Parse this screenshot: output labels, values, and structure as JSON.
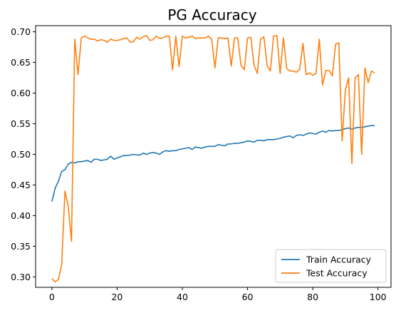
{
  "chart_data": {
    "type": "line",
    "title": "PG Accuracy",
    "xlabel": "",
    "ylabel": "",
    "xlim": [
      -5,
      104
    ],
    "ylim": [
      0.283,
      0.71
    ],
    "x_ticks": [
      0,
      20,
      40,
      60,
      80,
      100
    ],
    "y_ticks": [
      0.3,
      0.35,
      0.4,
      0.45,
      0.5,
      0.55,
      0.6,
      0.65,
      0.7
    ],
    "y_tick_labels": [
      "0.30",
      "0.35",
      "0.40",
      "0.45",
      "0.50",
      "0.55",
      "0.60",
      "0.65",
      "0.70"
    ],
    "grid": false,
    "legend_position": "lower-right",
    "series": [
      {
        "name": "Train Accuracy",
        "color": "#1f77b4",
        "values": [
          0.423,
          0.445,
          0.456,
          0.472,
          0.475,
          0.484,
          0.487,
          0.486,
          0.488,
          0.488,
          0.489,
          0.49,
          0.487,
          0.492,
          0.492,
          0.49,
          0.491,
          0.492,
          0.497,
          0.492,
          0.494,
          0.496,
          0.498,
          0.498,
          0.499,
          0.5,
          0.499,
          0.499,
          0.502,
          0.5,
          0.502,
          0.503,
          0.502,
          0.5,
          0.504,
          0.506,
          0.505,
          0.506,
          0.506,
          0.508,
          0.509,
          0.51,
          0.511,
          0.508,
          0.512,
          0.511,
          0.51,
          0.512,
          0.513,
          0.513,
          0.513,
          0.516,
          0.515,
          0.514,
          0.517,
          0.517,
          0.518,
          0.518,
          0.519,
          0.52,
          0.522,
          0.521,
          0.52,
          0.523,
          0.523,
          0.522,
          0.524,
          0.524,
          0.524,
          0.525,
          0.526,
          0.528,
          0.529,
          0.53,
          0.527,
          0.531,
          0.532,
          0.531,
          0.533,
          0.535,
          0.534,
          0.533,
          0.536,
          0.538,
          0.536,
          0.539,
          0.538,
          0.539,
          0.539,
          0.54,
          0.542,
          0.543,
          0.541,
          0.543,
          0.544,
          0.544,
          0.545,
          0.546,
          0.547,
          0.547
        ]
      },
      {
        "name": "Test Accuracy",
        "color": "#ff7f0e",
        "values": [
          0.297,
          0.292,
          0.296,
          0.32,
          0.44,
          0.415,
          0.358,
          0.688,
          0.63,
          0.69,
          0.693,
          0.69,
          0.688,
          0.688,
          0.685,
          0.687,
          0.686,
          0.683,
          0.688,
          0.686,
          0.686,
          0.687,
          0.689,
          0.69,
          0.683,
          0.684,
          0.691,
          0.688,
          0.692,
          0.694,
          0.686,
          0.687,
          0.693,
          0.689,
          0.69,
          0.693,
          0.693,
          0.638,
          0.693,
          0.643,
          0.693,
          0.69,
          0.691,
          0.693,
          0.689,
          0.69,
          0.69,
          0.69,
          0.693,
          0.688,
          0.641,
          0.69,
          0.69,
          0.689,
          0.69,
          0.644,
          0.69,
          0.69,
          0.645,
          0.638,
          0.69,
          0.691,
          0.645,
          0.632,
          0.688,
          0.692,
          0.645,
          0.636,
          0.693,
          0.694,
          0.632,
          0.69,
          0.64,
          0.636,
          0.636,
          0.634,
          0.639,
          0.681,
          0.63,
          0.633,
          0.629,
          0.632,
          0.688,
          0.613,
          0.637,
          0.637,
          0.628,
          0.68,
          0.682,
          0.522,
          0.605,
          0.625,
          0.485,
          0.625,
          0.63,
          0.5,
          0.641,
          0.617,
          0.636,
          0.633
        ]
      }
    ]
  }
}
